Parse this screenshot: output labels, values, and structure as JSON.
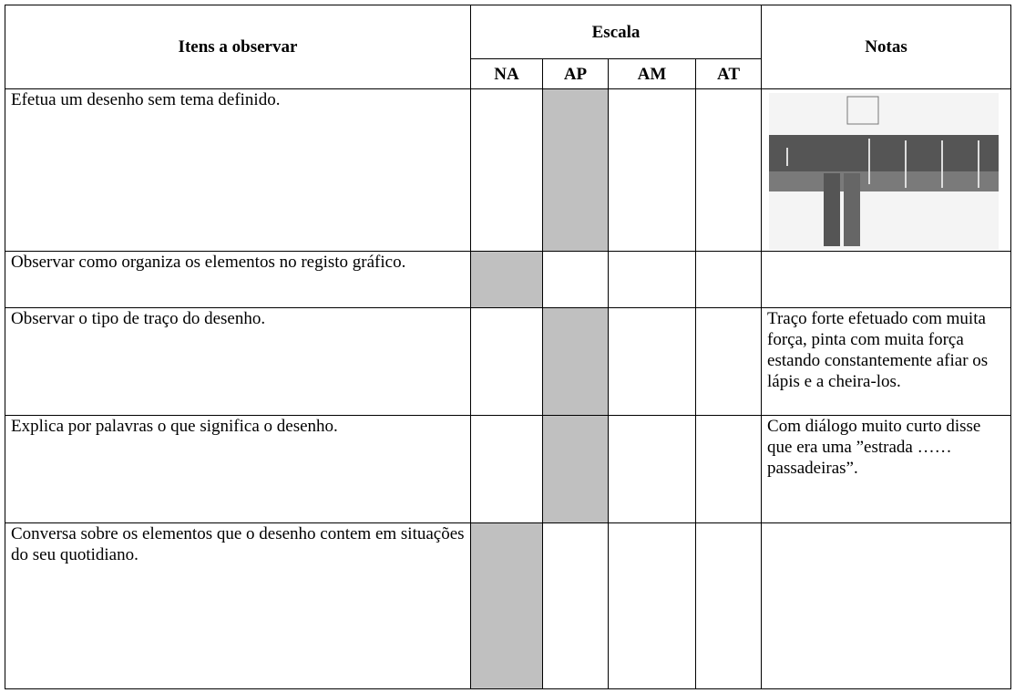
{
  "table": {
    "header": {
      "item": "Itens a observar",
      "scale": "Escala",
      "notes": "Notas",
      "levels": [
        "NA",
        "AP",
        "AM",
        "AT"
      ]
    },
    "rows": [
      {
        "item": "Efetua um desenho sem tema definido.",
        "marked": "AP",
        "note": null,
        "note_image": true
      },
      {
        "item": "Observar como organiza os elementos no registo gráfico.",
        "marked": "NA",
        "note": null
      },
      {
        "item": "Observar o tipo de traço do desenho.",
        "marked": "AP",
        "note": "Traço forte efetuado com muita força, pinta com muita força estando constantemente afiar os lápis e a cheira-los."
      },
      {
        "item": "Explica por palavras o que significa o desenho.",
        "marked": "AP",
        "note": "Com diálogo muito curto disse que era uma ”estrada …… passadeiras”."
      },
      {
        "item": "Conversa sobre os elementos que o desenho contem em situações do seu quotidiano.",
        "marked": "NA",
        "note": null
      }
    ]
  }
}
